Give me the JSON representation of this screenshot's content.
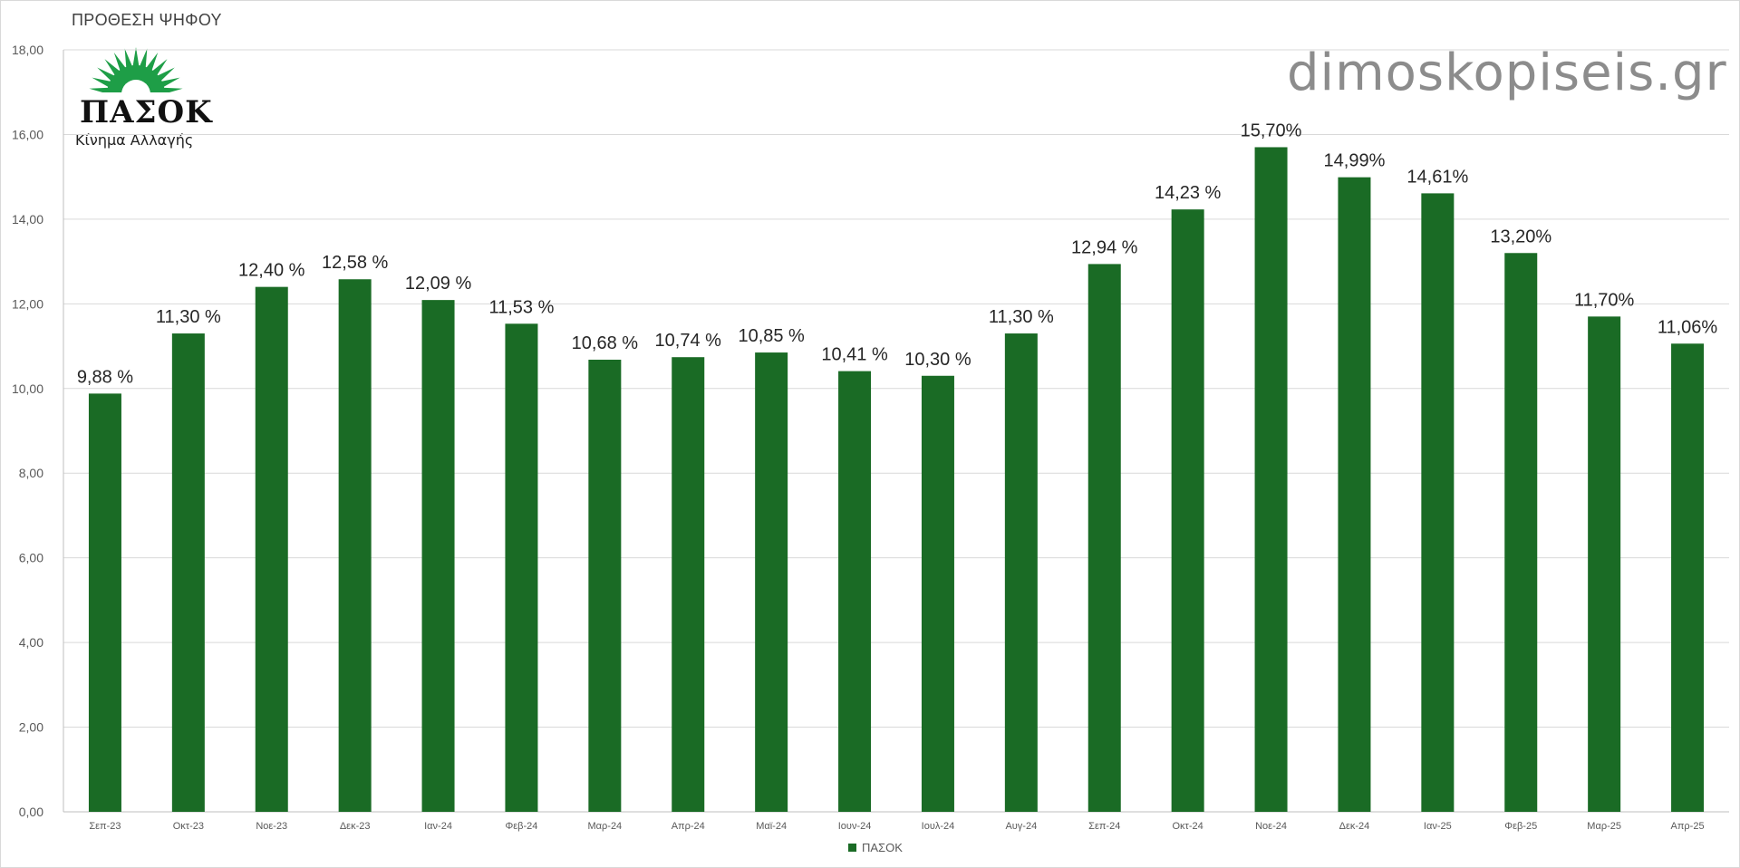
{
  "chart_data": {
    "type": "bar",
    "title": "ΠΡΟΘΕΣΗ ΨΗΦΟΥ",
    "categories": [
      "Σεπ-23",
      "Οκτ-23",
      "Νοε-23",
      "Δεκ-23",
      "Ιαν-24",
      "Φεβ-24",
      "Μαρ-24",
      "Απρ-24",
      "Μαϊ-24",
      "Ιουν-24",
      "Ιουλ-24",
      "Αυγ-24",
      "Σεπ-24",
      "Οκτ-24",
      "Νοε-24",
      "Δεκ-24",
      "Ιαν-25",
      "Φεβ-25",
      "Μαρ-25",
      "Απρ-25"
    ],
    "series": [
      {
        "name": "ΠΑΣΟΚ",
        "values": [
          9.88,
          11.3,
          12.4,
          12.58,
          12.09,
          11.53,
          10.68,
          10.74,
          10.85,
          10.41,
          10.3,
          11.3,
          12.94,
          14.23,
          15.7,
          14.99,
          14.61,
          13.2,
          11.7,
          11.06
        ],
        "data_labels": [
          "9,88 %",
          "11,30 %",
          "12,40 %",
          "12,58 %",
          "12,09 %",
          "11,53 %",
          "10,68 %",
          "10,74 %",
          "10,85 %",
          "10,41 %",
          "10,30 %",
          "11,30 %",
          "12,94 %",
          "14,23 %",
          "15,70%",
          "14,99%",
          "14,61%",
          "13,20%",
          "11,70%",
          "11,06%"
        ],
        "color": "#1a6b25"
      }
    ],
    "ylim": [
      0,
      18
    ],
    "yticks": [
      0,
      2,
      4,
      6,
      8,
      10,
      12,
      14,
      16,
      18
    ],
    "ytick_labels": [
      "0,00",
      "2,00",
      "4,00",
      "6,00",
      "8,00",
      "10,00",
      "12,00",
      "14,00",
      "16,00",
      "18,00"
    ],
    "grid": true,
    "legend_position": "bottom-center"
  },
  "watermark": "dimoskopiseis.gr",
  "logo": {
    "wordmark": "ΠΑΣΟΚ",
    "subtitle": "Κίνημα Αλλαγής",
    "sun_color": "#1e9e47"
  },
  "legend": {
    "label": "ΠΑΣΟΚ"
  }
}
